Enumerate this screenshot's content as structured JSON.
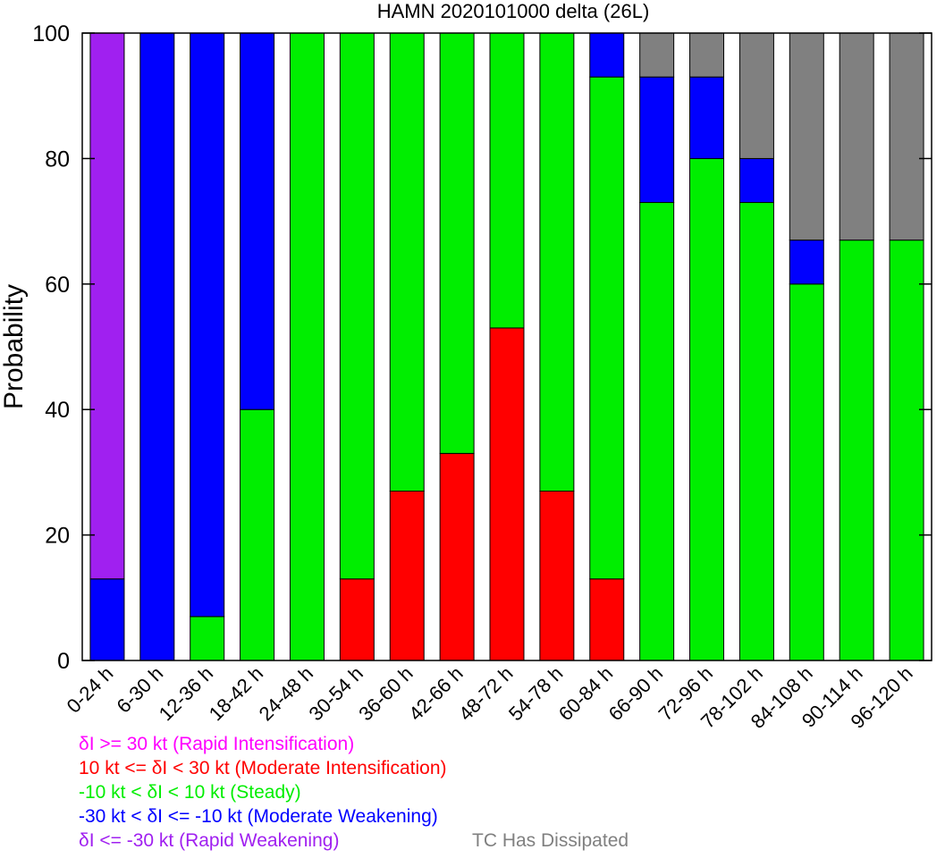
{
  "chart_data": {
    "type": "bar",
    "stacked": true,
    "title": "HAMN 2020101000 delta (26L)",
    "xlabel": "",
    "ylabel": "Probability",
    "ylim": [
      0,
      100
    ],
    "yticks": [
      0,
      20,
      40,
      60,
      80,
      100
    ],
    "grid": false,
    "categories": [
      "0-24 h",
      "6-30 h",
      "12-36 h",
      "18-42 h",
      "24-48 h",
      "30-54 h",
      "36-60 h",
      "42-66 h",
      "48-72 h",
      "54-78 h",
      "60-84 h",
      "66-90 h",
      "72-96 h",
      "78-102 h",
      "84-108 h",
      "90-114 h",
      "96-120 h"
    ],
    "series": [
      {
        "key": "rapid_intensification",
        "color": "#ff00ff",
        "values": [
          0,
          0,
          0,
          0,
          0,
          0,
          0,
          0,
          0,
          0,
          0,
          0,
          0,
          0,
          0,
          0,
          0
        ]
      },
      {
        "key": "moderate_intensification",
        "color": "#ff0000",
        "values": [
          0,
          0,
          0,
          0,
          0,
          13,
          27,
          33,
          53,
          27,
          13,
          0,
          0,
          0,
          0,
          0,
          0
        ]
      },
      {
        "key": "steady",
        "color": "#00ee00",
        "values": [
          0,
          0,
          7,
          40,
          100,
          87,
          73,
          67,
          47,
          73,
          80,
          73,
          80,
          73,
          60,
          67,
          67
        ]
      },
      {
        "key": "moderate_weakening",
        "color": "#0000ff",
        "values": [
          13,
          100,
          93,
          60,
          0,
          0,
          0,
          0,
          0,
          0,
          7,
          20,
          13,
          7,
          7,
          0,
          0
        ]
      },
      {
        "key": "rapid_weakening",
        "color": "#a020f0",
        "values": [
          87,
          0,
          0,
          0,
          0,
          0,
          0,
          0,
          0,
          0,
          0,
          0,
          0,
          0,
          0,
          0,
          0
        ]
      },
      {
        "key": "dissipated",
        "color": "#808080",
        "values": [
          0,
          0,
          0,
          0,
          0,
          0,
          0,
          0,
          0,
          0,
          0,
          7,
          7,
          20,
          33,
          33,
          33
        ]
      }
    ],
    "stack_order": [
      "moderate_intensification",
      "steady",
      "moderate_weakening",
      "rapid_weakening",
      "dissipated",
      "rapid_intensification"
    ]
  },
  "legend": [
    {
      "text": "δI >= 30 kt (Rapid Intensification)",
      "color": "#ff00ff"
    },
    {
      "text": "10 kt <= δI < 30 kt (Moderate Intensification)",
      "color": "#ff0000"
    },
    {
      "text": "-10 kt < δI < 10 kt (Steady)",
      "color": "#00ee00"
    },
    {
      "text": "-30 kt < δI <= -10 kt (Moderate Weakening)",
      "color": "#0000ff"
    },
    {
      "text": "δI <= -30 kt (Rapid Weakening)",
      "color": "#a020f0"
    },
    {
      "text": "TC Has Dissipated",
      "color": "#808080"
    }
  ]
}
